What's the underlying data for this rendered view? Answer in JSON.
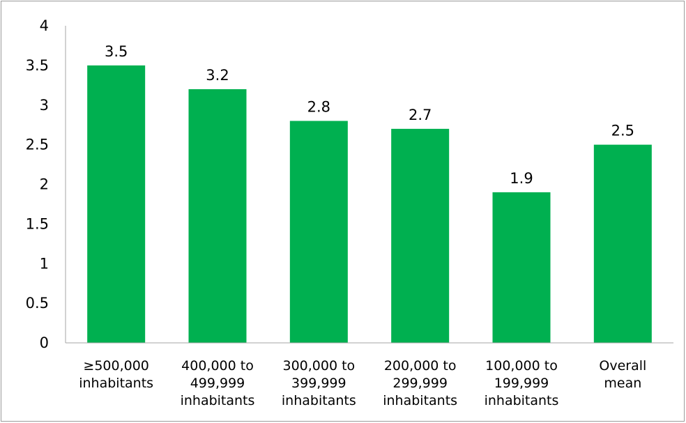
{
  "chart_data": {
    "type": "bar",
    "title": "",
    "xlabel": "",
    "ylabel": "",
    "ylim": [
      0,
      4
    ],
    "yticks": [
      "0",
      "0.5",
      "1",
      "1.5",
      "2",
      "2.5",
      "3",
      "3.5",
      "4"
    ],
    "grid": false,
    "legend": "none",
    "bar_color": "#00b050",
    "categories": [
      [
        "≥500,000",
        "inhabitants"
      ],
      [
        "400,000 to",
        "499,999",
        "inhabitants"
      ],
      [
        "300,000 to",
        "399,999",
        "inhabitants"
      ],
      [
        "200,000 to",
        "299,999",
        "inhabitants"
      ],
      [
        "100,000 to",
        "199,999",
        "inhabitants"
      ],
      [
        "Overall",
        "mean"
      ]
    ],
    "values": [
      3.5,
      3.2,
      2.8,
      2.7,
      1.9,
      2.5
    ],
    "data_labels": [
      "3.5",
      "3.2",
      "2.8",
      "2.7",
      "1.9",
      "2.5"
    ]
  }
}
